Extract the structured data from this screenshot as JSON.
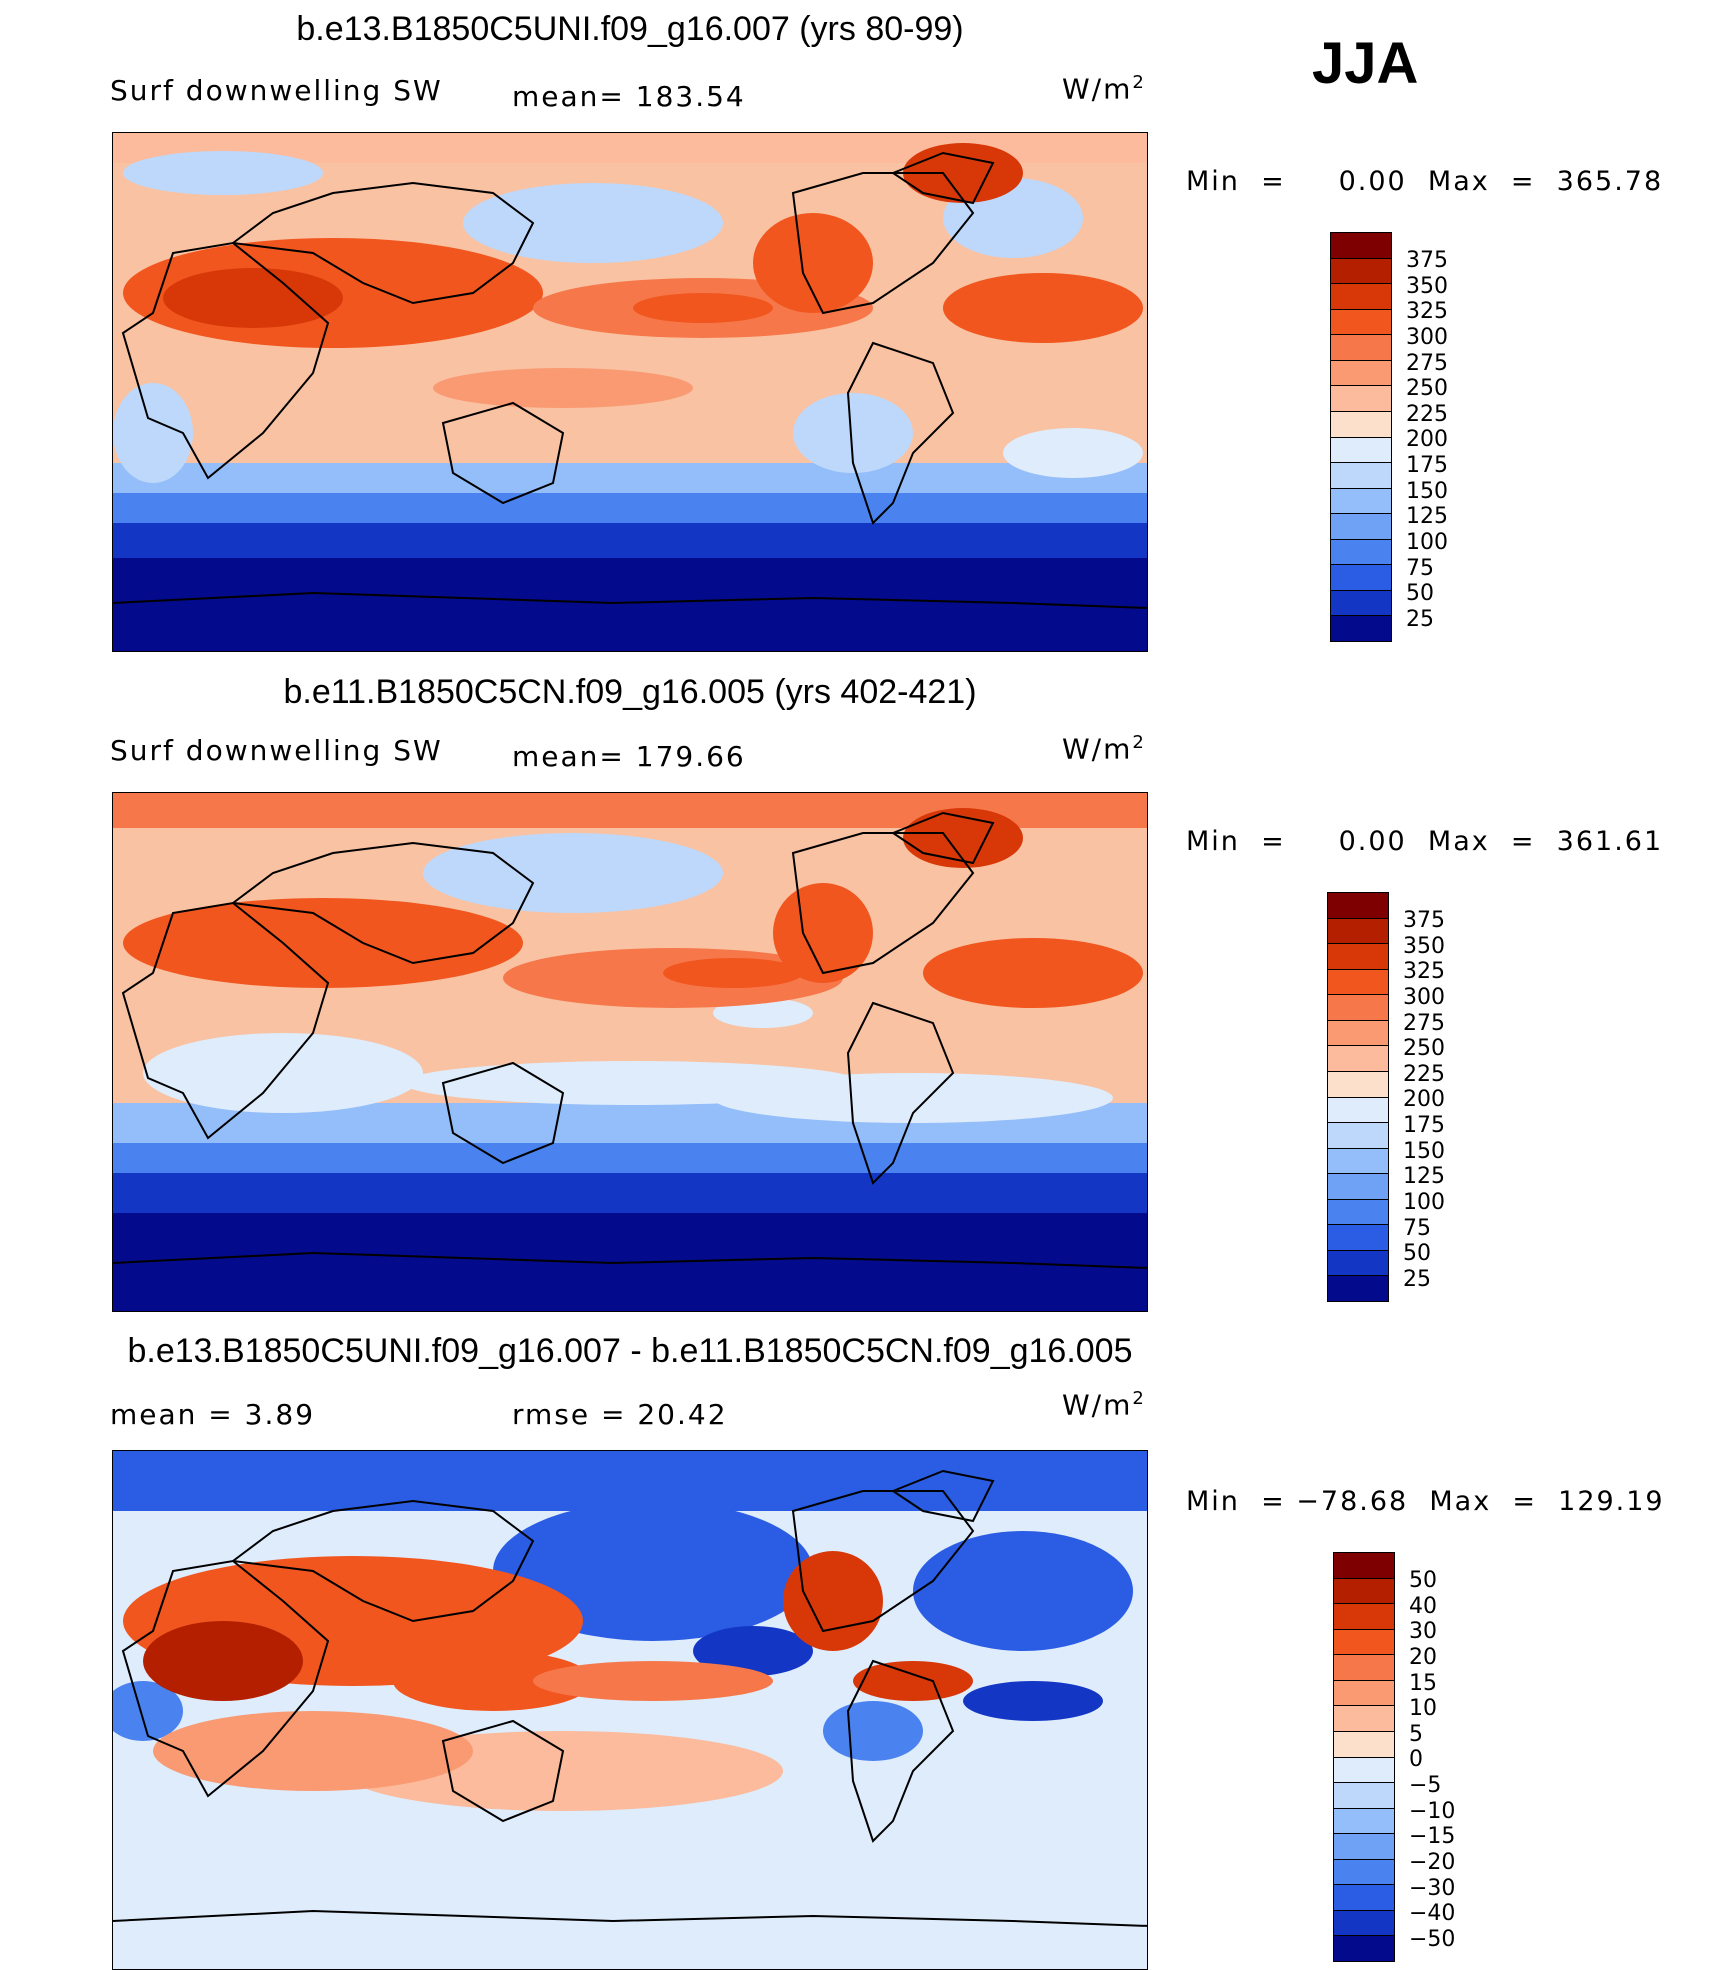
{
  "season": "JJA",
  "panels": [
    {
      "title": "b.e13.B1850C5UNI.f09_g16.007 (yrs 80-99)",
      "left_label": "Surf  downwelling  SW",
      "mid_label": "mean=  183.54",
      "units_base": "W/m",
      "units_exp": "2",
      "minmax": "Min  =     0.00  Max  =  365.78",
      "colorbar": {
        "labels": [
          "375",
          "350",
          "325",
          "300",
          "275",
          "250",
          "225",
          "200",
          "175",
          "150",
          "125",
          "100",
          "75",
          "50",
          "25"
        ],
        "colors": [
          "#7e0000",
          "#b41f00",
          "#d83808",
          "#f1561f",
          "#f6784a",
          "#f99a73",
          "#fbbb9c",
          "#fde0cb",
          "#deecfc",
          "#bdd8fb",
          "#94befa",
          "#6fa2f5",
          "#4a82ef",
          "#2a5de4",
          "#1337c4",
          "#030a8c"
        ]
      },
      "map_scheme": "absolute"
    },
    {
      "title": "b.e11.B1850C5CN.f09_g16.005 (yrs 402-421)",
      "left_label": "Surf  downwelling  SW",
      "mid_label": "mean=  179.66",
      "units_base": "W/m",
      "units_exp": "2",
      "minmax": "Min  =     0.00  Max  =  361.61",
      "colorbar": {
        "labels": [
          "375",
          "350",
          "325",
          "300",
          "275",
          "250",
          "225",
          "200",
          "175",
          "150",
          "125",
          "100",
          "75",
          "50",
          "25"
        ],
        "colors": [
          "#7e0000",
          "#b41f00",
          "#d83808",
          "#f1561f",
          "#f6784a",
          "#f99a73",
          "#fbbb9c",
          "#fde0cb",
          "#deecfc",
          "#bdd8fb",
          "#94befa",
          "#6fa2f5",
          "#4a82ef",
          "#2a5de4",
          "#1337c4",
          "#030a8c"
        ]
      },
      "map_scheme": "absolute"
    },
    {
      "title": "b.e13.B1850C5UNI.f09_g16.007 - b.e11.B1850C5CN.f09_g16.005",
      "left_label": "mean  =     3.89",
      "mid_label": "rmse  =     20.42",
      "units_base": "W/m",
      "units_exp": "2",
      "minmax": "Min  = −78.68  Max  =  129.19",
      "colorbar": {
        "labels": [
          "50",
          "40",
          "30",
          "20",
          "15",
          "10",
          "5",
          "0",
          "−5",
          "−10",
          "−15",
          "−20",
          "−30",
          "−40",
          "−50"
        ],
        "colors": [
          "#7e0000",
          "#b41f00",
          "#d83808",
          "#f1561f",
          "#f6784a",
          "#f99a73",
          "#fbbb9c",
          "#fde0cb",
          "#deecfc",
          "#bdd8fb",
          "#94befa",
          "#6fa2f5",
          "#4a82ef",
          "#2a5de4",
          "#1337c4",
          "#030a8c"
        ]
      },
      "map_scheme": "difference"
    }
  ]
}
